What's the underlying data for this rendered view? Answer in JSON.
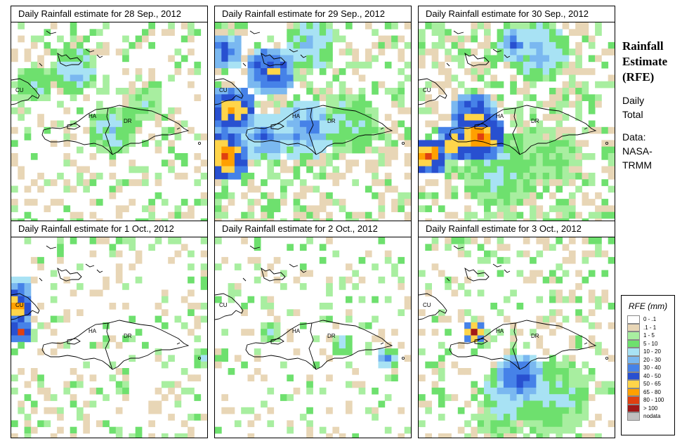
{
  "panels": [
    {
      "title": "Daily Rainfall estimate for  28 Sep., 2012",
      "map_labels": [
        "CU",
        "HA",
        "DR"
      ]
    },
    {
      "title": "Daily Rainfall estimate for  29 Sep., 2012",
      "map_labels": [
        "CU",
        "HA",
        "DR"
      ]
    },
    {
      "title": "Daily Rainfall estimate for  30 Sep., 2012",
      "map_labels": [
        "CU",
        "HA",
        "DR"
      ]
    },
    {
      "title": "Daily Rainfall estimate for  1 Oct., 2012",
      "map_labels": [
        "CU",
        "HA",
        "DR"
      ]
    },
    {
      "title": "Daily Rainfall estimate for  2 Oct., 2012",
      "map_labels": [
        "CU",
        "HA",
        "DR"
      ]
    },
    {
      "title": "Daily Rainfall estimate for  3 Oct., 2012",
      "map_labels": [
        "CU",
        "HA",
        "DR"
      ]
    }
  ],
  "side": {
    "title_line1": "Rainfall",
    "title_line2": "Estimate",
    "title_line3": "(RFE)",
    "daily": "Daily",
    "total": "Total",
    "data_label": "Data:",
    "source1": "NASA-",
    "source2": "TRMM"
  },
  "legend": {
    "title": "RFE (mm)",
    "entries": [
      {
        "label": "0 - .1",
        "color": "#ffffff"
      },
      {
        "label": ".1 - 1",
        "color": "#e8d6b6"
      },
      {
        "label": "1 - 5",
        "color": "#a8eea0"
      },
      {
        "label": "5 - 10",
        "color": "#6ee06e"
      },
      {
        "label": "10 - 20",
        "color": "#a8e2f4"
      },
      {
        "label": "20 - 30",
        "color": "#7ab8f0"
      },
      {
        "label": "30 - 40",
        "color": "#4682e8"
      },
      {
        "label": "40 - 50",
        "color": "#2850d0"
      },
      {
        "label": "50 - 65",
        "color": "#ffd54a"
      },
      {
        "label": "65 - 80",
        "color": "#ffa000"
      },
      {
        "label": "80 - 100",
        "color": "#e04010"
      },
      {
        "label": "> 100",
        "color": "#a01818"
      },
      {
        "label": "nodata",
        "color": "#c0c0c0"
      }
    ]
  }
}
